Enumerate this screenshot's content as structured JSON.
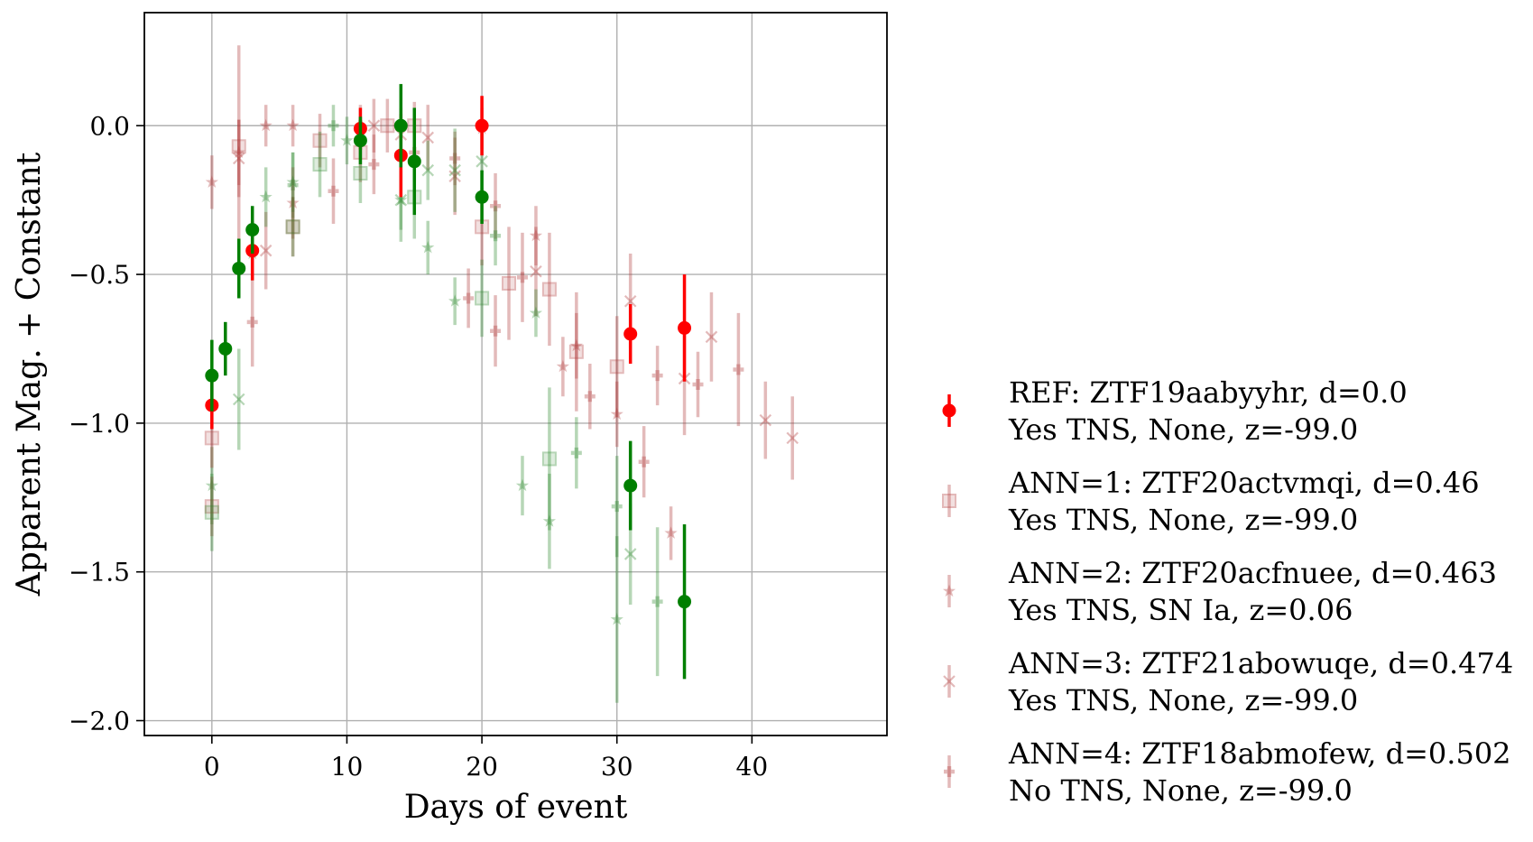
{
  "chart_data": {
    "type": "scatter",
    "title": "",
    "xlabel": "Days of event",
    "ylabel": "Apparent Mag. + Constant",
    "xlim": [
      -5,
      50
    ],
    "ylim": [
      -2.05,
      0.38
    ],
    "xticks": [
      0,
      10,
      20,
      30,
      40
    ],
    "yticks": [
      0.0,
      -0.5,
      -1.0,
      -1.5,
      -2.0
    ],
    "xtick_labels": [
      "0",
      "10",
      "20",
      "30",
      "40"
    ],
    "ytick_labels": [
      "0.0",
      "−0.5",
      "−1.0",
      "−1.5",
      "−2.0"
    ],
    "grid": true,
    "legend_position": "outside right",
    "colors": {
      "red": "#ff0000",
      "green": "#007f00",
      "annotation_red": "#b03a3a",
      "annotation_green": "#2f8a2f"
    },
    "series": [
      {
        "name": "REF: ZTF19aabyyhr, d=0.0",
        "name_line2": "Yes TNS, None, z=-99.0",
        "marker": "circle",
        "bands": [
          {
            "band": "r",
            "color": "#ff0000",
            "alpha": 1.0,
            "points": [
              [
                0,
                -0.94,
                0.08
              ],
              [
                3,
                -0.42,
                0.1
              ],
              [
                11,
                -0.01,
                0.07
              ],
              [
                14,
                -0.1,
                0.14
              ],
              [
                20,
                0.0,
                0.1
              ],
              [
                31,
                -0.7,
                0.1
              ],
              [
                35,
                -0.68,
                0.18
              ]
            ]
          },
          {
            "band": "g",
            "color": "#007f00",
            "alpha": 1.0,
            "points": [
              [
                0,
                -0.84,
                0.12
              ],
              [
                1,
                -0.75,
                0.09
              ],
              [
                2,
                -0.48,
                0.1
              ],
              [
                3,
                -0.35,
                0.08
              ],
              [
                11,
                -0.05,
                0.08
              ],
              [
                14,
                0.0,
                0.14
              ],
              [
                15,
                -0.12,
                0.18
              ],
              [
                20,
                -0.24,
                0.09
              ],
              [
                31,
                -1.21,
                0.15
              ],
              [
                35,
                -1.6,
                0.26
              ]
            ]
          }
        ]
      },
      {
        "name": "ANN=1: ZTF20actvmqi, d=0.46",
        "name_line2": "Yes TNS, None, z=-99.0",
        "marker": "square",
        "bands": [
          {
            "band": "r",
            "color": "#b03a3a",
            "alpha": 0.35,
            "points": [
              [
                0,
                -1.05,
                0.1
              ],
              [
                0,
                -1.28,
                0.1
              ],
              [
                2,
                -0.07,
                0.34
              ],
              [
                6,
                -0.34,
                0.1
              ],
              [
                8,
                -0.05,
                0.09
              ],
              [
                11,
                -0.09,
                0.1
              ],
              [
                13,
                0.0,
                0.09
              ],
              [
                15,
                0.0,
                0.08
              ],
              [
                20,
                -0.34,
                0.13
              ],
              [
                22,
                -0.53,
                0.19
              ],
              [
                25,
                -0.55,
                0.19
              ],
              [
                27,
                -0.76,
                0.2
              ],
              [
                30,
                -0.81,
                0.17
              ]
            ]
          },
          {
            "band": "g",
            "color": "#2f8a2f",
            "alpha": 0.35,
            "points": [
              [
                0,
                -1.3,
                0.13
              ],
              [
                6,
                -0.34,
                0.1
              ],
              [
                8,
                -0.13,
                0.11
              ],
              [
                11,
                -0.16,
                0.1
              ],
              [
                15,
                -0.24,
                0.14
              ],
              [
                20,
                -0.58,
                0.13
              ],
              [
                25,
                -1.12,
                0.24
              ]
            ]
          }
        ]
      },
      {
        "name": "ANN=2: ZTF20acfnuee, d=0.463",
        "name_line2": "Yes TNS, SN Ia, z=0.06",
        "marker": "star",
        "bands": [
          {
            "band": "r",
            "color": "#b03a3a",
            "alpha": 0.35,
            "points": [
              [
                0,
                -0.19,
                0.09
              ],
              [
                2,
                -0.09,
                0.11
              ],
              [
                4,
                0.0,
                0.07
              ],
              [
                6,
                0.0,
                0.07
              ],
              [
                6,
                -0.26,
                0.12
              ],
              [
                20,
                -0.01,
                0.07
              ],
              [
                24,
                -0.37,
                0.1
              ],
              [
                26,
                -0.81,
                0.1
              ],
              [
                27,
                -0.74,
                0.11
              ],
              [
                30,
                -0.97,
                0.11
              ],
              [
                34,
                -1.37,
                0.09
              ]
            ]
          },
          {
            "band": "g",
            "color": "#2f8a2f",
            "alpha": 0.35,
            "points": [
              [
                0,
                -1.21,
                0.13
              ],
              [
                3,
                -0.43,
                0.09
              ],
              [
                4,
                -0.24,
                0.1
              ],
              [
                6,
                -0.19,
                0.1
              ],
              [
                10,
                -0.05,
                0.08
              ],
              [
                14,
                -0.25,
                0.1
              ],
              [
                16,
                -0.41,
                0.09
              ],
              [
                18,
                -0.59,
                0.08
              ],
              [
                23,
                -1.21,
                0.1
              ],
              [
                24,
                -0.63,
                0.08
              ],
              [
                25,
                -1.33,
                0.16
              ],
              [
                30,
                -1.66,
                0.28
              ]
            ]
          }
        ]
      },
      {
        "name": "ANN=3: ZTF21abowuqe, d=0.474",
        "name_line2": "Yes TNS, None, z=-99.0",
        "marker": "x",
        "bands": [
          {
            "band": "r",
            "color": "#b03a3a",
            "alpha": 0.35,
            "points": [
              [
                2,
                -0.11,
                0.13
              ],
              [
                4,
                -0.42,
                0.13
              ],
              [
                12,
                0.0,
                0.09
              ],
              [
                14,
                -0.03,
                0.09
              ],
              [
                16,
                -0.04,
                0.11
              ],
              [
                18,
                -0.17,
                0.13
              ],
              [
                24,
                -0.49,
                0.15
              ],
              [
                31,
                -0.59,
                0.16
              ],
              [
                35,
                -0.85,
                0.19
              ],
              [
                37,
                -0.71,
                0.15
              ],
              [
                41,
                -0.99,
                0.13
              ],
              [
                43,
                -1.05,
                0.14
              ]
            ]
          },
          {
            "band": "g",
            "color": "#2f8a2f",
            "alpha": 0.35,
            "points": [
              [
                2,
                -0.92,
                0.17
              ],
              [
                14,
                -0.25,
                0.14
              ],
              [
                16,
                -0.15,
                0.1
              ],
              [
                18,
                -0.15,
                0.14
              ],
              [
                20,
                -0.12,
                0.13
              ],
              [
                31,
                -1.44,
                0.17
              ]
            ]
          }
        ]
      },
      {
        "name": "ANN=4: ZTF18abmofew, d=0.502",
        "name_line2": "No TNS, None, z=-99.0",
        "marker": "plus",
        "bands": [
          {
            "band": "r",
            "color": "#b03a3a",
            "alpha": 0.35,
            "points": [
              [
                3,
                -0.66,
                0.15
              ],
              [
                9,
                -0.22,
                0.11
              ],
              [
                11,
                0.0,
                0.07
              ],
              [
                12,
                -0.13,
                0.1
              ],
              [
                15,
                -0.09,
                0.1
              ],
              [
                18,
                -0.11,
                0.09
              ],
              [
                19,
                -0.58,
                0.1
              ],
              [
                21,
                -0.27,
                0.11
              ],
              [
                21,
                -0.69,
                0.12
              ],
              [
                23,
                -0.51,
                0.15
              ],
              [
                28,
                -0.91,
                0.11
              ],
              [
                32,
                -1.13,
                0.12
              ],
              [
                33,
                -0.84,
                0.1
              ],
              [
                36,
                -0.87,
                0.11
              ],
              [
                39,
                -0.82,
                0.19
              ]
            ]
          },
          {
            "band": "g",
            "color": "#2f8a2f",
            "alpha": 0.35,
            "points": [
              [
                6,
                -0.2,
                0.11
              ],
              [
                9,
                0.0,
                0.07
              ],
              [
                21,
                -0.37,
                0.1
              ],
              [
                27,
                -1.1,
                0.12
              ],
              [
                30,
                -1.28,
                0.17
              ],
              [
                33,
                -1.6,
                0.25
              ]
            ]
          }
        ]
      }
    ]
  }
}
